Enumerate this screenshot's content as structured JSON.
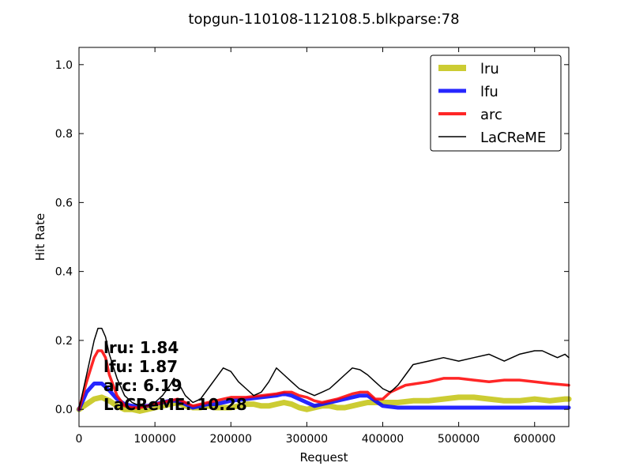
{
  "chart_data": {
    "type": "line",
    "title": "topgun-110108-112108.5.blkparse:78",
    "xlabel": "Request",
    "ylabel": "Hit Rate",
    "xlim": [
      0,
      645000
    ],
    "ylim": [
      -0.05,
      1.05
    ],
    "xticks": [
      0,
      100000,
      200000,
      300000,
      400000,
      500000,
      600000
    ],
    "yticks": [
      0.0,
      0.2,
      0.4,
      0.6,
      0.8,
      1.0
    ],
    "legend_position": "top-right",
    "grid": false,
    "series": [
      {
        "name": "lru",
        "color": "#bfbf00",
        "x": [
          0,
          10000,
          20000,
          30000,
          40000,
          50000,
          60000,
          70000,
          80000,
          90000,
          100000,
          110000,
          120000,
          130000,
          140000,
          150000,
          160000,
          170000,
          180000,
          190000,
          200000,
          210000,
          220000,
          230000,
          240000,
          250000,
          260000,
          270000,
          280000,
          290000,
          300000,
          310000,
          320000,
          330000,
          340000,
          350000,
          360000,
          370000,
          380000,
          390000,
          400000,
          420000,
          440000,
          460000,
          480000,
          500000,
          520000,
          540000,
          560000,
          580000,
          600000,
          620000,
          640000,
          645000
        ],
        "y": [
          0.0,
          0.015,
          0.03,
          0.035,
          0.025,
          0.01,
          0.0,
          0.0,
          -0.005,
          0.0,
          0.005,
          0.01,
          0.015,
          0.02,
          0.01,
          0.005,
          0.005,
          0.01,
          0.005,
          0.005,
          0.005,
          0.01,
          0.015,
          0.015,
          0.01,
          0.01,
          0.015,
          0.02,
          0.015,
          0.005,
          0.0,
          0.005,
          0.01,
          0.01,
          0.005,
          0.005,
          0.01,
          0.015,
          0.02,
          0.02,
          0.02,
          0.02,
          0.025,
          0.025,
          0.03,
          0.035,
          0.035,
          0.03,
          0.025,
          0.025,
          0.03,
          0.025,
          0.03,
          0.03
        ]
      },
      {
        "name": "lfu",
        "color": "#0000ff",
        "x": [
          0,
          10000,
          20000,
          30000,
          40000,
          50000,
          60000,
          70000,
          80000,
          90000,
          100000,
          110000,
          120000,
          130000,
          140000,
          150000,
          160000,
          170000,
          180000,
          190000,
          200000,
          220000,
          240000,
          260000,
          270000,
          280000,
          290000,
          300000,
          310000,
          320000,
          340000,
          360000,
          370000,
          380000,
          390000,
          400000,
          420000,
          440000,
          480000,
          520000,
          560000,
          600000,
          645000
        ],
        "y": [
          0.0,
          0.05,
          0.075,
          0.075,
          0.055,
          0.03,
          0.015,
          0.01,
          0.01,
          0.01,
          0.015,
          0.02,
          0.025,
          0.025,
          0.015,
          0.005,
          0.01,
          0.015,
          0.015,
          0.02,
          0.025,
          0.03,
          0.035,
          0.04,
          0.045,
          0.04,
          0.03,
          0.02,
          0.01,
          0.015,
          0.025,
          0.035,
          0.04,
          0.04,
          0.025,
          0.01,
          0.005,
          0.005,
          0.005,
          0.005,
          0.005,
          0.005,
          0.005
        ]
      },
      {
        "name": "arc",
        "color": "#ff0000",
        "x": [
          0,
          10000,
          20000,
          25000,
          30000,
          35000,
          40000,
          50000,
          60000,
          70000,
          80000,
          90000,
          100000,
          110000,
          120000,
          130000,
          140000,
          150000,
          160000,
          170000,
          180000,
          190000,
          200000,
          220000,
          240000,
          260000,
          270000,
          280000,
          290000,
          300000,
          310000,
          320000,
          340000,
          360000,
          370000,
          380000,
          390000,
          400000,
          410000,
          430000,
          460000,
          480000,
          500000,
          520000,
          540000,
          560000,
          580000,
          600000,
          620000,
          645000
        ],
        "y": [
          0.0,
          0.08,
          0.15,
          0.17,
          0.17,
          0.15,
          0.1,
          0.04,
          0.01,
          0.005,
          0.005,
          0.01,
          0.015,
          0.02,
          0.025,
          0.03,
          0.02,
          0.01,
          0.015,
          0.02,
          0.025,
          0.03,
          0.035,
          0.035,
          0.04,
          0.045,
          0.05,
          0.05,
          0.04,
          0.035,
          0.025,
          0.02,
          0.03,
          0.045,
          0.05,
          0.05,
          0.03,
          0.03,
          0.05,
          0.07,
          0.08,
          0.09,
          0.09,
          0.085,
          0.08,
          0.085,
          0.085,
          0.08,
          0.075,
          0.07
        ]
      },
      {
        "name": "LaCReME",
        "color": "#000000",
        "x": [
          0,
          10000,
          20000,
          25000,
          30000,
          35000,
          40000,
          50000,
          60000,
          70000,
          80000,
          90000,
          100000,
          110000,
          120000,
          125000,
          130000,
          140000,
          150000,
          160000,
          170000,
          180000,
          190000,
          200000,
          210000,
          220000,
          230000,
          240000,
          250000,
          260000,
          270000,
          280000,
          290000,
          300000,
          310000,
          320000,
          330000,
          340000,
          350000,
          360000,
          370000,
          380000,
          390000,
          400000,
          410000,
          420000,
          430000,
          440000,
          460000,
          480000,
          500000,
          520000,
          540000,
          560000,
          580000,
          600000,
          610000,
          620000,
          630000,
          640000,
          645000
        ],
        "y": [
          0.0,
          0.1,
          0.2,
          0.235,
          0.235,
          0.21,
          0.16,
          0.09,
          0.04,
          0.02,
          0.01,
          0.01,
          0.02,
          0.04,
          0.07,
          0.09,
          0.08,
          0.04,
          0.02,
          0.03,
          0.06,
          0.09,
          0.12,
          0.11,
          0.08,
          0.06,
          0.04,
          0.05,
          0.08,
          0.12,
          0.1,
          0.08,
          0.06,
          0.05,
          0.04,
          0.05,
          0.06,
          0.08,
          0.1,
          0.12,
          0.115,
          0.1,
          0.08,
          0.06,
          0.05,
          0.07,
          0.1,
          0.13,
          0.14,
          0.15,
          0.14,
          0.15,
          0.16,
          0.14,
          0.16,
          0.17,
          0.17,
          0.16,
          0.15,
          0.16,
          0.15
        ]
      }
    ],
    "annotations": [
      {
        "text": "lru:  1.84"
      },
      {
        "text": "lfu:  1.87"
      },
      {
        "text": "arc:  6.19"
      },
      {
        "text": "LaCReME:  10.28"
      }
    ]
  }
}
